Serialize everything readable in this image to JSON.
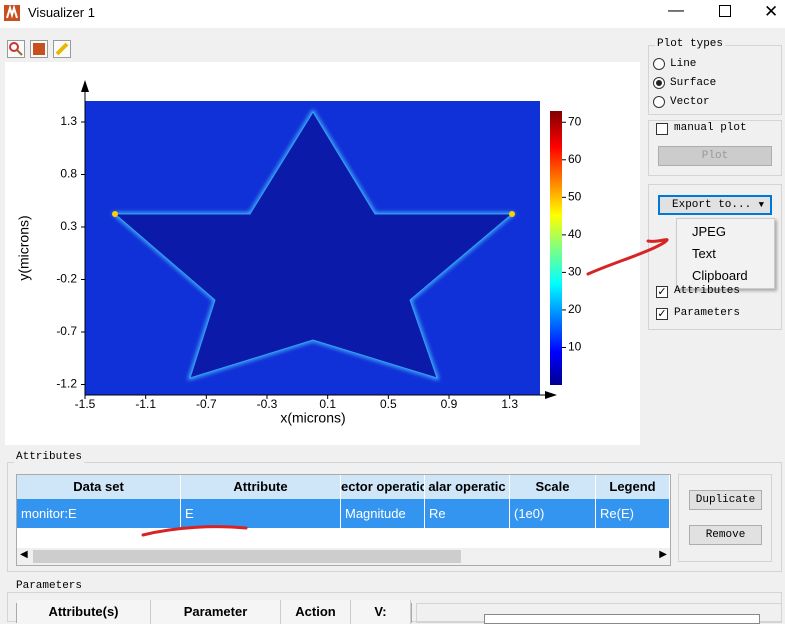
{
  "window": {
    "title": "Visualizer 1"
  },
  "plot": {
    "xlabel": "x(microns)",
    "ylabel": "y(microns)",
    "xlim": [
      -1.5,
      1.5
    ],
    "ylim": [
      -1.3,
      1.5
    ],
    "xticks": [
      -1.5,
      -1.1,
      -0.7,
      -0.3,
      0.1,
      0.5,
      0.9,
      1.3
    ],
    "yticks": [
      1.3,
      0.8,
      0.3,
      -0.2,
      -0.7,
      -1.2
    ],
    "colorbar": {
      "lim": [
        0,
        73
      ],
      "ticks": [
        10,
        20,
        30,
        40,
        50,
        60,
        70
      ]
    }
  },
  "plot_types": {
    "title": "Plot types",
    "options": [
      "Line",
      "Surface",
      "Vector"
    ],
    "selected": 1
  },
  "manual_plot": {
    "label": "manual plot",
    "button": "Plot"
  },
  "export": {
    "button": "Export to...",
    "menu": [
      "JPEG",
      "Text",
      "Clipboard"
    ]
  },
  "show": {
    "items": [
      "Attributes",
      "Parameters"
    ],
    "checked": [
      true,
      true
    ]
  },
  "attributes": {
    "title": "Attributes",
    "columns": [
      "Data set",
      "Attribute",
      "ector operatio",
      "alar operatic",
      "Scale",
      "Legend"
    ],
    "rows": [
      [
        "monitor:E",
        "E",
        "Magnitude",
        "Re",
        "(1e0)",
        "Re(E)"
      ]
    ],
    "buttons": [
      "Duplicate",
      "Remove"
    ]
  },
  "parameters": {
    "title": "Parameters",
    "columns": [
      "Attribute(s)",
      "Parameter",
      "Action",
      "V:"
    ]
  }
}
